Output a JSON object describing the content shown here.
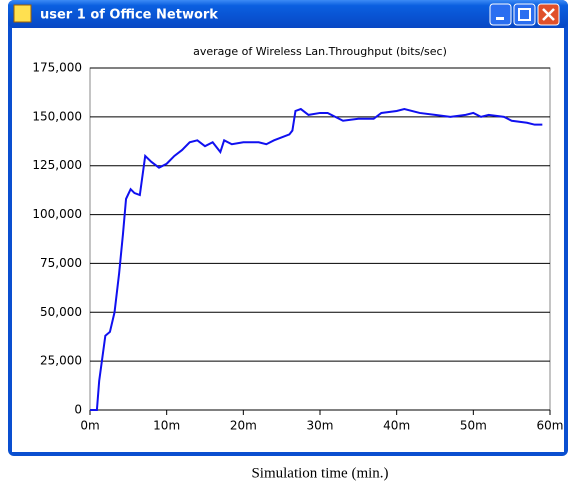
{
  "window": {
    "title": "user 1 of Office Network"
  },
  "chart_data": {
    "type": "line",
    "title": "average of Wireless Lan.Throughput (bits/sec)",
    "color": "#1010f0",
    "grid": true,
    "x": [
      0,
      0.9,
      1.2,
      2,
      2.6,
      3.2,
      3.8,
      4.3,
      4.7,
      5.3,
      5.8,
      6.5,
      7.2,
      8,
      9,
      10,
      11,
      12,
      13,
      14,
      15,
      16,
      17,
      17.5,
      18.5,
      20,
      22,
      23,
      24,
      26,
      26.4,
      26.8,
      27.5,
      28.5,
      30,
      31,
      32,
      33,
      35,
      37,
      38,
      40,
      41,
      43,
      45,
      47,
      49,
      50,
      51,
      52,
      54,
      55,
      57,
      58,
      59
    ],
    "values": [
      0,
      0,
      15000,
      38000,
      40000,
      50000,
      70000,
      90000,
      108000,
      113000,
      111000,
      110000,
      130000,
      127000,
      124000,
      126000,
      130000,
      133000,
      137000,
      138000,
      135000,
      137000,
      132000,
      138000,
      136000,
      137000,
      137000,
      136000,
      138000,
      141000,
      143000,
      153000,
      154000,
      151000,
      152000,
      152000,
      150000,
      148000,
      149000,
      149000,
      152000,
      153000,
      154000,
      152000,
      151000,
      150000,
      151000,
      152000,
      150000,
      151000,
      150000,
      148000,
      147000,
      146000,
      146000
    ],
    "xlim": [
      0,
      60
    ],
    "xticks": [
      {
        "value": 0,
        "label": "0m"
      },
      {
        "value": 10,
        "label": "10m"
      },
      {
        "value": 20,
        "label": "20m"
      },
      {
        "value": 30,
        "label": "30m"
      },
      {
        "value": 40,
        "label": "40m"
      },
      {
        "value": 50,
        "label": "50m"
      },
      {
        "value": 60,
        "label": "60m"
      }
    ],
    "ylim": [
      0,
      175000
    ],
    "yticks": [
      0,
      {
        "value": 25000,
        "label": "25,000"
      },
      {
        "value": 50000,
        "label": "50,000"
      },
      {
        "value": 75000,
        "label": "75,000"
      },
      {
        "value": 100000,
        "label": "100,000"
      },
      {
        "value": 125000,
        "label": "125,000"
      },
      {
        "value": 150000,
        "label": "150,000"
      },
      {
        "value": 175000,
        "label": "175,000"
      }
    ]
  },
  "caption": "Simulation time (min.)"
}
